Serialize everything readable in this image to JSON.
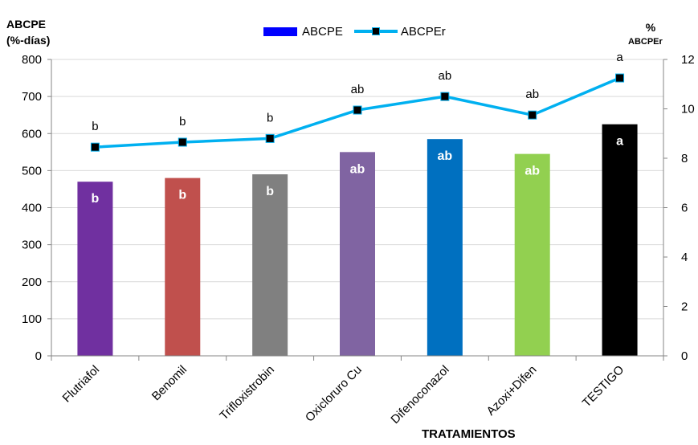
{
  "chart_data": {
    "type": "bar",
    "categories": [
      "Flutriafol",
      "Benomil",
      "Trifloxistrobin",
      "Oxicloruro Cu",
      "Difenoconazol",
      "Azoxi+Difen",
      "TESTIGO"
    ],
    "series": [
      {
        "name": "ABCPE",
        "type": "bar",
        "axis": "left",
        "values": [
          470,
          480,
          490,
          550,
          585,
          545,
          625
        ],
        "colors": [
          "#7030a0",
          "#c0504d",
          "#808080",
          "#8064a2",
          "#0070c0",
          "#92d050",
          "#000000"
        ],
        "labels": [
          "b",
          "b",
          "b",
          "ab",
          "ab",
          "ab",
          "a"
        ]
      },
      {
        "name": "ABCPEr",
        "type": "line",
        "axis": "right",
        "values": [
          8.45,
          8.65,
          8.8,
          9.95,
          10.5,
          9.75,
          11.25
        ],
        "color": "#00b0f0",
        "labels": [
          "b",
          "b",
          "b",
          "ab",
          "ab",
          "ab",
          "a"
        ]
      }
    ],
    "yleft_label_line1": "ABCPE",
    "yleft_label_line2": "(%-días)",
    "yright_label_line1": "%",
    "yright_label_line2": "ABCPEr",
    "xlabel": "TRATAMIENTOS",
    "ylim_left": [
      0,
      800
    ],
    "yticks_left": [
      0,
      100,
      200,
      300,
      400,
      500,
      600,
      700,
      800
    ],
    "ylim_right": [
      0,
      12
    ],
    "yticks_right": [
      0,
      2,
      4,
      6,
      8,
      10,
      12
    ],
    "grid": true,
    "legend_position": "top-center"
  }
}
